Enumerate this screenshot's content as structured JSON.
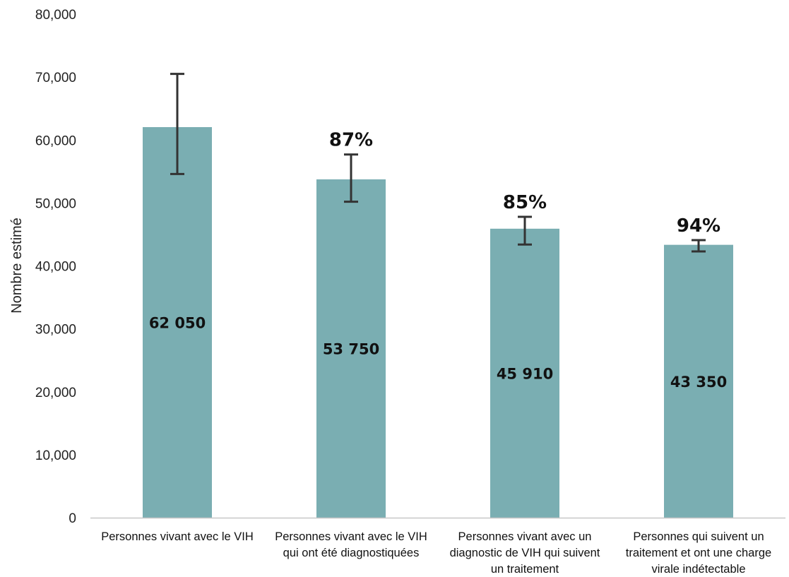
{
  "chart_data": {
    "type": "bar",
    "ylabel": "Nombre estimé",
    "xlabel": "",
    "ylim": [
      0,
      80000
    ],
    "yticks": [
      0,
      10000,
      20000,
      30000,
      40000,
      50000,
      60000,
      70000,
      80000
    ],
    "ytick_labels": [
      "0",
      "10,000",
      "20,000",
      "30,000",
      "40,000",
      "50,000",
      "60,000",
      "70,000",
      "80,000"
    ],
    "grid": false,
    "bar_color": "#7aaeb2",
    "error_bar_color": "#333333",
    "categories": [
      [
        "Personnes vivant avec le VIH"
      ],
      [
        "Personnes  vivant avec le VIH",
        "qui ont été diagnostiquées"
      ],
      [
        "Personnes vivant avec un",
        "diagnostic de VIH qui suivent",
        "un traitement"
      ],
      [
        "Personnes qui suivent un",
        "traitement et ont une charge",
        "virale indétectable"
      ]
    ],
    "values": [
      62050,
      53750,
      45910,
      43350
    ],
    "value_labels": [
      "62 050",
      "53 750",
      "45 910",
      "43 350"
    ],
    "error_low": [
      54600,
      50200,
      43400,
      42300
    ],
    "error_high": [
      70500,
      57700,
      47800,
      44100
    ],
    "percent_labels": [
      "",
      "87%",
      "85%",
      "94%"
    ]
  }
}
